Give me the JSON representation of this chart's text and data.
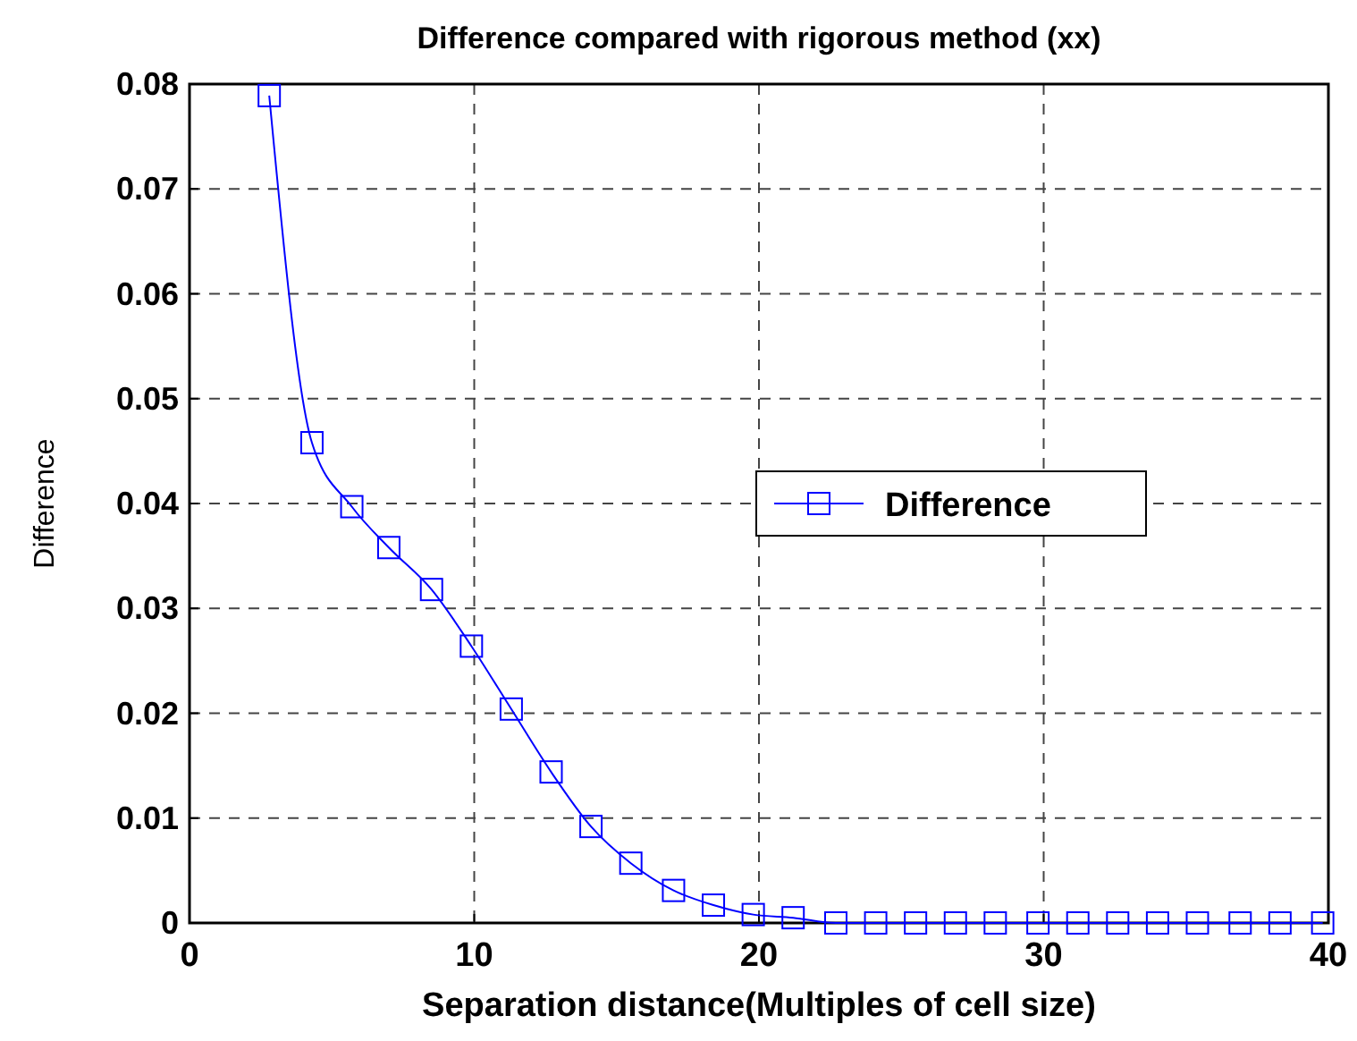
{
  "chart_data": {
    "type": "line",
    "title": "Difference compared with rigorous method (xx)",
    "xlabel": "Separation distance(Multiples of cell size)",
    "ylabel": "Difference",
    "x": [
      2.8,
      4.3,
      5.7,
      7.0,
      8.5,
      9.9,
      11.3,
      12.7,
      14.1,
      15.5,
      17.0,
      18.4,
      19.8,
      21.2,
      22.7,
      24.1,
      25.5,
      26.9,
      28.3,
      29.8,
      31.2,
      32.6,
      34.0,
      35.4,
      36.9,
      38.3,
      39.8
    ],
    "series": [
      {
        "name": "Difference",
        "color": "#0000ff",
        "values": [
          0.0789,
          0.0458,
          0.0397,
          0.0358,
          0.0318,
          0.0264,
          0.0204,
          0.0144,
          0.0092,
          0.0057,
          0.0031,
          0.0017,
          0.0008,
          0.0005,
          0,
          0,
          0,
          0,
          0,
          0,
          0,
          0,
          0,
          0,
          0,
          0,
          0
        ]
      }
    ],
    "xlim": [
      0,
      40
    ],
    "xticks": [
      0,
      10,
      20,
      30,
      40
    ],
    "ylim": [
      0,
      0.08
    ],
    "yticks": [
      0,
      {
        "value": 0.01,
        "label": "0.01"
      },
      {
        "value": 0.02,
        "label": "0.02"
      },
      {
        "value": 0.03,
        "label": "0.03"
      },
      {
        "value": 0.04,
        "label": "0.04"
      },
      {
        "value": 0.05,
        "label": "0.05"
      },
      {
        "value": 0.06,
        "label": "0.06"
      },
      {
        "value": 0.07,
        "label": "0.07"
      },
      {
        "value": 0.08,
        "label": "0.08"
      }
    ],
    "grid": true,
    "legend": "right",
    "marker": "square",
    "line_style": "solid"
  }
}
